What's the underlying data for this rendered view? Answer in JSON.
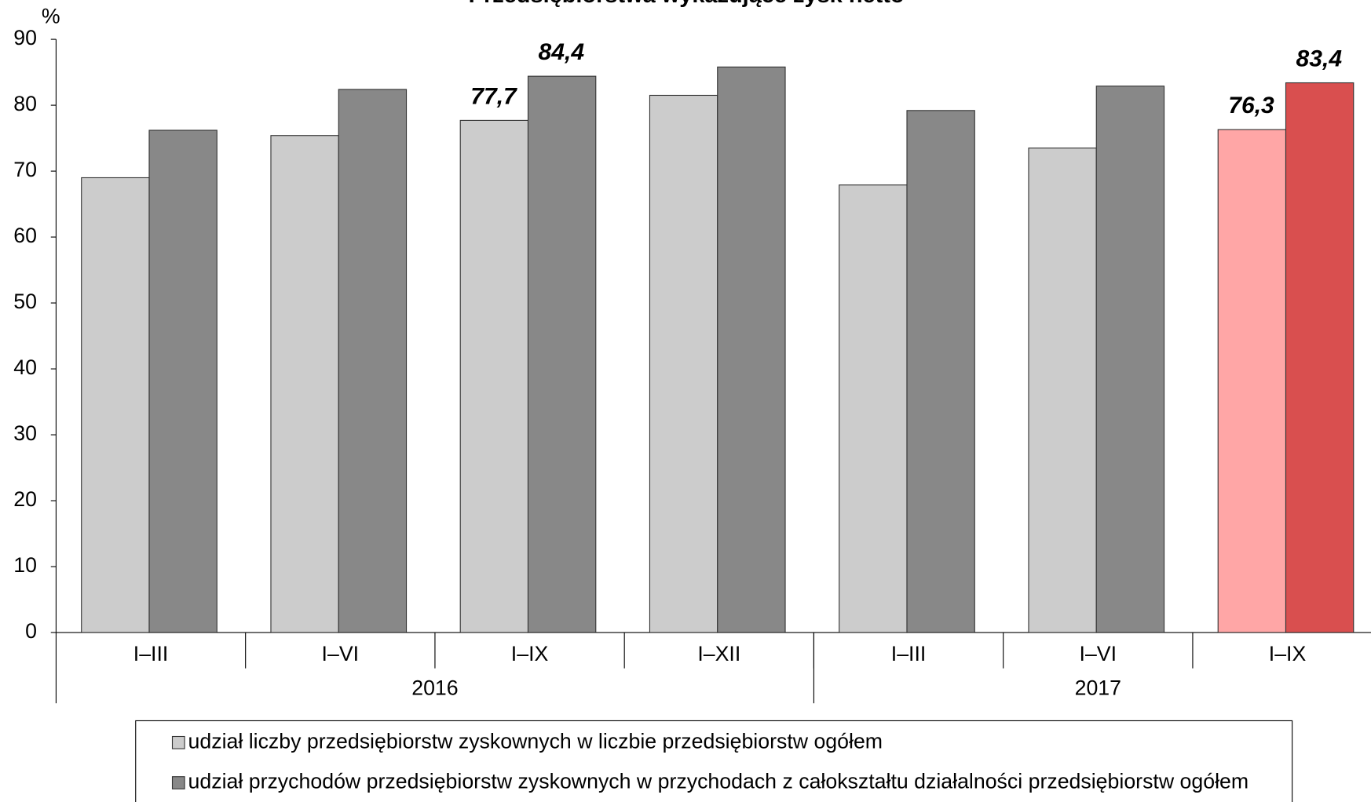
{
  "chart_data": {
    "type": "bar",
    "title": "Przedsiębiorstwa wykazujące zysk netto",
    "y_axis_label": "%",
    "categories": [
      "I–III",
      "I–VI",
      "I–IX",
      "I–XII",
      "I–III",
      "I–VI",
      "I–IX"
    ],
    "groups": [
      {
        "label": "2016",
        "count": 4
      },
      {
        "label": "2017",
        "count": 3
      }
    ],
    "series": [
      {
        "name": "udział liczby przedsiębiorstw zyskownych w liczbie przedsiębiorstw ogółem",
        "color": "#cccccc",
        "colors": [
          "#cccccc",
          "#cccccc",
          "#cccccc",
          "#cccccc",
          "#cccccc",
          "#cccccc",
          "#ffa6a6"
        ],
        "values": [
          69.0,
          75.4,
          77.7,
          81.5,
          67.9,
          73.5,
          76.3
        ],
        "value_labels": [
          null,
          null,
          "77,7",
          null,
          null,
          null,
          "76,3"
        ],
        "label_colors": [
          "#808080",
          "#808080",
          "#808080",
          "#808080",
          "#808080",
          "#808080",
          "#f07a7a"
        ]
      },
      {
        "name": "udział przychodów przedsiębiorstw zyskownych w przychodach z całokształtu działalności przedsiębiorstw ogółem",
        "color": "#888888",
        "colors": [
          "#888888",
          "#888888",
          "#888888",
          "#888888",
          "#888888",
          "#888888",
          "#d94f4f"
        ],
        "values": [
          76.2,
          82.4,
          84.4,
          85.8,
          79.2,
          82.9,
          83.4
        ],
        "value_labels": [
          null,
          null,
          "84,4",
          null,
          null,
          null,
          "83,4"
        ],
        "label_colors": [
          "#808080",
          "#808080",
          "#808080",
          "#808080",
          "#808080",
          "#808080",
          "#c00000"
        ]
      }
    ],
    "ylim": [
      0,
      90
    ],
    "yticks": [
      0,
      10,
      20,
      30,
      40,
      50,
      60,
      70,
      80,
      90
    ],
    "grid": false
  }
}
